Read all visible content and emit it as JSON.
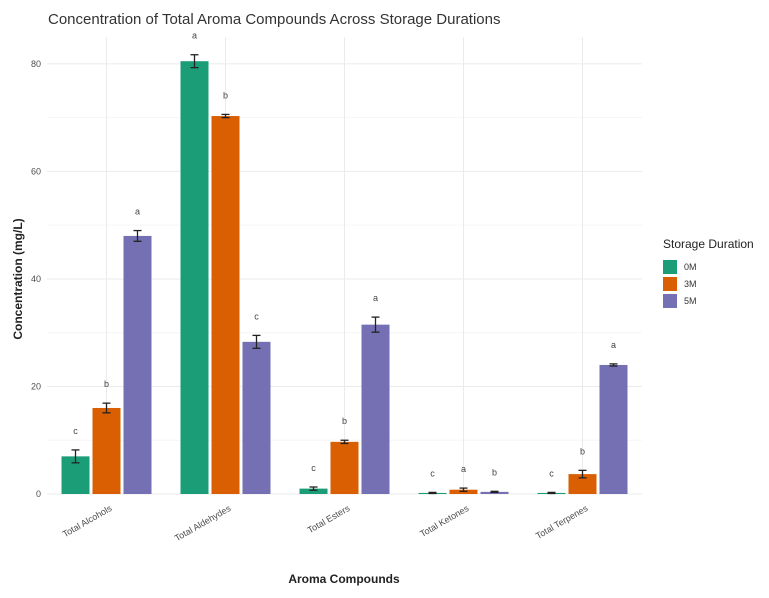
{
  "chart_data": {
    "type": "bar",
    "title": "Concentration of Total Aroma Compounds Across Storage Durations",
    "xlabel": "Aroma Compounds",
    "ylabel": "Concentration (mg/L)",
    "ylim": [
      0,
      85
    ],
    "yticks": [
      0,
      20,
      40,
      60,
      80
    ],
    "grid": true,
    "legend": {
      "title": "Storage Duration",
      "position": "right"
    },
    "categories": [
      "Total Alcohols",
      "Total Aldehydes",
      "Total Esters",
      "Total Ketones",
      "Total Terpenes"
    ],
    "series": [
      {
        "name": "0M",
        "color": "#1b9e77",
        "values": [
          7.0,
          80.5,
          1.0,
          0.2,
          0.2
        ],
        "errors": [
          1.2,
          1.2,
          0.3,
          0.1,
          0.1
        ],
        "letters": [
          "c",
          "a",
          "c",
          "c",
          "c"
        ]
      },
      {
        "name": "3M",
        "color": "#d95f02",
        "values": [
          16.0,
          70.3,
          9.7,
          0.8,
          3.7
        ],
        "errors": [
          0.9,
          0.3,
          0.3,
          0.3,
          0.7
        ],
        "letters": [
          "b",
          "b",
          "b",
          "a",
          "b"
        ]
      },
      {
        "name": "5M",
        "color": "#7570b3",
        "values": [
          48.0,
          28.3,
          31.5,
          0.4,
          24.0
        ],
        "errors": [
          1.0,
          1.2,
          1.4,
          0.1,
          0.2
        ],
        "letters": [
          "a",
          "c",
          "a",
          "b",
          "a"
        ]
      }
    ]
  }
}
